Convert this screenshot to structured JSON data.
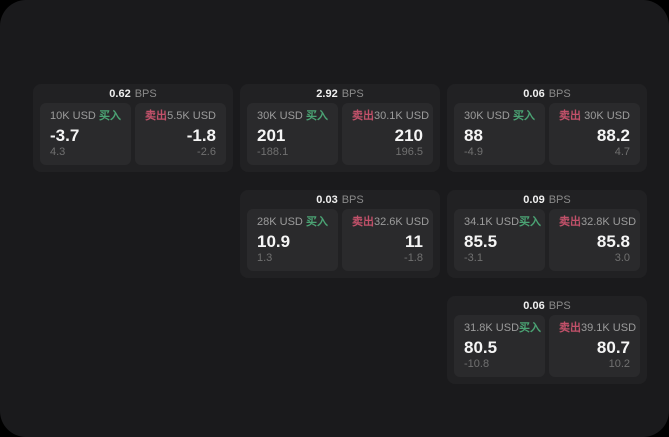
{
  "page": {
    "background": "#000000",
    "container_color": "#1a1a1c"
  },
  "colors": {
    "buy_green": "#4ba374",
    "sell_red": "#c2516a"
  },
  "unit_label": "BPS",
  "buy_label": "买入",
  "sell_label": "卖出",
  "cards": [
    {
      "bps": "0.62",
      "buy": {
        "amount": "10K USD",
        "price": "-3.7",
        "change": "4.3"
      },
      "sell": {
        "amount": "5.5K USD",
        "price": "-1.8",
        "change": "-2.6"
      }
    },
    {
      "bps": "2.92",
      "buy": {
        "amount": "30K USD",
        "price": "201",
        "change": "-188.1"
      },
      "sell": {
        "amount": "30.1K USD",
        "price": "210",
        "change": "196.5"
      }
    },
    {
      "bps": "0.06",
      "buy": {
        "amount": "30K USD",
        "price": "88",
        "change": "-4.9"
      },
      "sell": {
        "amount": "30K USD",
        "price": "88.2",
        "change": "4.7"
      }
    },
    {
      "bps": "0.03",
      "buy": {
        "amount": "28K USD",
        "price": "10.9",
        "change": "1.3"
      },
      "sell": {
        "amount": "32.6K USD",
        "price": "11",
        "change": "-1.8"
      }
    },
    {
      "bps": "0.09",
      "buy": {
        "amount": "34.1K USD",
        "price": "85.5",
        "change": "-3.1"
      },
      "sell": {
        "amount": "32.8K USD",
        "price": "85.8",
        "change": "3.0"
      }
    },
    {
      "bps": "0.06",
      "buy": {
        "amount": "31.8K USD",
        "price": "80.5",
        "change": "-10.8"
      },
      "sell": {
        "amount": "39.1K USD",
        "price": "80.7",
        "change": "10.2"
      }
    }
  ]
}
